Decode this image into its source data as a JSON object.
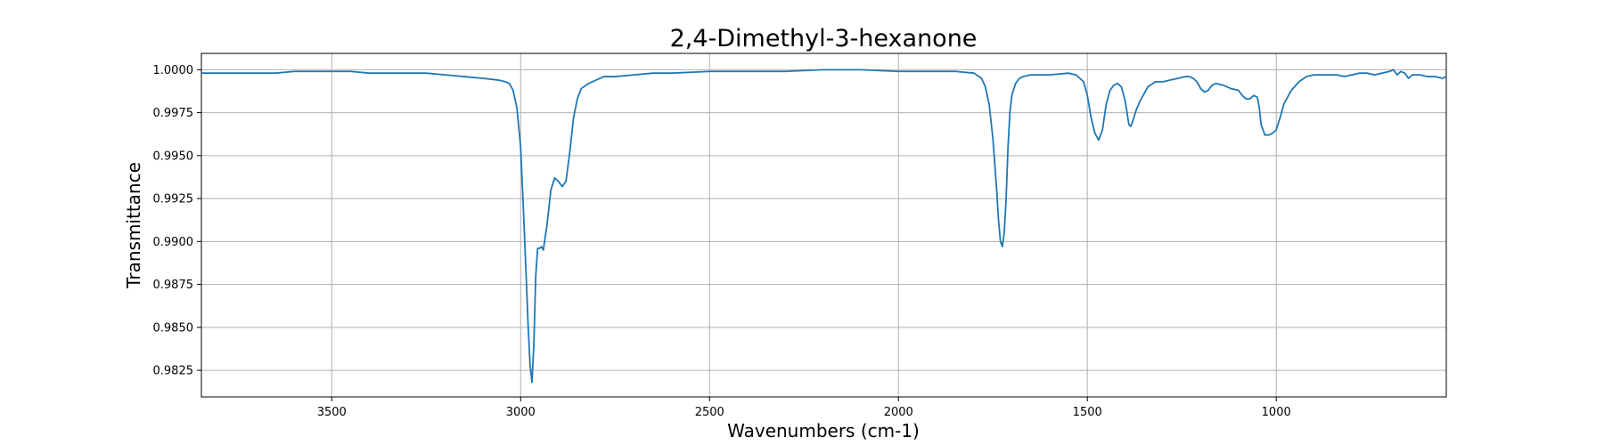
{
  "chart_data": {
    "type": "line",
    "title": "2,4-Dimethyl-3-hexanone",
    "xlabel": "Wavenumbers (cm-1)",
    "ylabel": "Transmittance",
    "x_reversed": true,
    "xlim": [
      3845,
      550
    ],
    "ylim": [
      0.98095,
      1.00095
    ],
    "grid": true,
    "line_color": "#1f77b4",
    "xticks": [
      {
        "value": 3500,
        "label": "3500"
      },
      {
        "value": 3000,
        "label": "3000"
      },
      {
        "value": 2500,
        "label": "2500"
      },
      {
        "value": 2000,
        "label": "2000"
      },
      {
        "value": 1500,
        "label": "1500"
      },
      {
        "value": 1000,
        "label": "1000"
      }
    ],
    "yticks": [
      {
        "value": 0.9825,
        "label": "0.9825"
      },
      {
        "value": 0.985,
        "label": "0.9850"
      },
      {
        "value": 0.9875,
        "label": "0.9875"
      },
      {
        "value": 0.99,
        "label": "0.9900"
      },
      {
        "value": 0.9925,
        "label": "0.9925"
      },
      {
        "value": 0.995,
        "label": "0.9950"
      },
      {
        "value": 0.9975,
        "label": "0.9975"
      },
      {
        "value": 1.0,
        "label": "1.0000"
      }
    ],
    "series": [
      {
        "x": [
          3845,
          3800,
          3750,
          3700,
          3650,
          3600,
          3550,
          3500,
          3450,
          3400,
          3350,
          3300,
          3250,
          3200,
          3150,
          3100,
          3060,
          3040,
          3030,
          3020,
          3010,
          3000,
          2990,
          2980,
          2975,
          2970,
          2965,
          2960,
          2955,
          2950,
          2945,
          2940,
          2930,
          2920,
          2910,
          2900,
          2890,
          2880,
          2870,
          2860,
          2850,
          2840,
          2820,
          2800,
          2780,
          2750,
          2700,
          2650,
          2600,
          2500,
          2400,
          2300,
          2200,
          2100,
          2000,
          1900,
          1850,
          1800,
          1780,
          1770,
          1760,
          1750,
          1740,
          1735,
          1730,
          1725,
          1720,
          1715,
          1710,
          1705,
          1700,
          1690,
          1680,
          1670,
          1650,
          1600,
          1550,
          1530,
          1510,
          1500,
          1490,
          1480,
          1470,
          1460,
          1450,
          1440,
          1430,
          1420,
          1410,
          1400,
          1395,
          1390,
          1385,
          1380,
          1370,
          1360,
          1340,
          1320,
          1300,
          1280,
          1260,
          1240,
          1230,
          1220,
          1210,
          1200,
          1190,
          1180,
          1170,
          1160,
          1140,
          1120,
          1100,
          1090,
          1080,
          1070,
          1060,
          1050,
          1045,
          1040,
          1030,
          1020,
          1010,
          1000,
          990,
          980,
          960,
          940,
          920,
          900,
          880,
          860,
          840,
          820,
          800,
          780,
          760,
          740,
          720,
          700,
          690,
          680,
          670,
          660,
          650,
          640,
          620,
          600,
          580,
          560,
          550
        ],
        "y": [
          0.9998,
          0.9998,
          0.9998,
          0.9998,
          0.9998,
          0.9999,
          0.9999,
          0.9999,
          0.9999,
          0.9998,
          0.9998,
          0.9998,
          0.9998,
          0.9997,
          0.9996,
          0.9995,
          0.9994,
          0.9993,
          0.9992,
          0.9988,
          0.9978,
          0.9955,
          0.9905,
          0.985,
          0.9828,
          0.9818,
          0.984,
          0.988,
          0.9896,
          0.9896,
          0.9897,
          0.9895,
          0.991,
          0.993,
          0.9937,
          0.9935,
          0.9932,
          0.9935,
          0.9952,
          0.9972,
          0.9983,
          0.9989,
          0.9992,
          0.9994,
          0.9996,
          0.9996,
          0.9997,
          0.9998,
          0.9998,
          0.9999,
          0.9999,
          0.9999,
          1.0,
          1.0,
          0.9999,
          0.9999,
          0.9999,
          0.9998,
          0.9995,
          0.999,
          0.998,
          0.996,
          0.993,
          0.9912,
          0.99,
          0.9897,
          0.9905,
          0.9925,
          0.9955,
          0.9975,
          0.9985,
          0.9992,
          0.9995,
          0.9996,
          0.9997,
          0.9997,
          0.9998,
          0.9997,
          0.9993,
          0.9985,
          0.9972,
          0.9963,
          0.9959,
          0.9965,
          0.998,
          0.9988,
          0.9991,
          0.9992,
          0.999,
          0.9982,
          0.9975,
          0.9968,
          0.9967,
          0.997,
          0.9977,
          0.9982,
          0.999,
          0.9993,
          0.9993,
          0.9994,
          0.9995,
          0.9996,
          0.9996,
          0.9995,
          0.9993,
          0.9989,
          0.9987,
          0.9988,
          0.9991,
          0.9992,
          0.9991,
          0.9989,
          0.9988,
          0.9985,
          0.9983,
          0.9983,
          0.9985,
          0.9984,
          0.9978,
          0.9968,
          0.9962,
          0.9962,
          0.9963,
          0.9965,
          0.9972,
          0.998,
          0.9988,
          0.9993,
          0.9996,
          0.9997,
          0.9997,
          0.9997,
          0.9997,
          0.9996,
          0.9997,
          0.9998,
          0.9998,
          0.9997,
          0.9998,
          0.9999,
          1.0,
          0.9997,
          0.9999,
          0.9998,
          0.9995,
          0.9997,
          0.9997,
          0.9996,
          0.9996,
          0.9995,
          0.9996
        ]
      }
    ]
  }
}
